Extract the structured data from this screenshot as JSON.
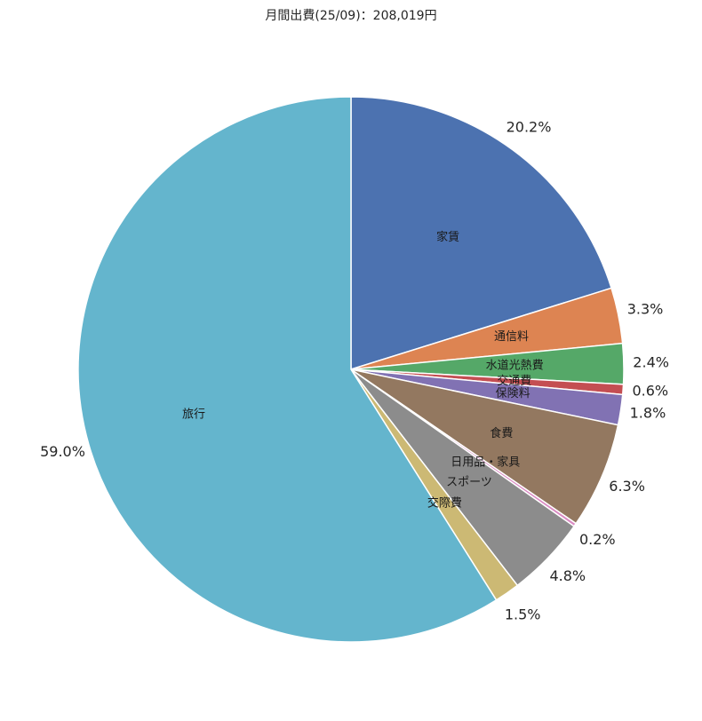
{
  "chart_data": {
    "type": "pie",
    "title": "月間出費(25/09)：208,019円",
    "start_angle_deg": 90,
    "direction": "clockwise",
    "slices": [
      {
        "label": "家賃",
        "percent": 20.2,
        "percent_label": "20.2%",
        "color": "#4c72b0"
      },
      {
        "label": "通信料",
        "percent": 3.3,
        "percent_label": "3.3%",
        "color": "#dd8452"
      },
      {
        "label": "水道光熱費",
        "percent": 2.4,
        "percent_label": "2.4%",
        "color": "#55a868"
      },
      {
        "label": "交通費",
        "percent": 0.6,
        "percent_label": "0.6%",
        "color": "#c44e52"
      },
      {
        "label": "保険料",
        "percent": 1.8,
        "percent_label": "1.8%",
        "color": "#8172b3"
      },
      {
        "label": "食費",
        "percent": 6.3,
        "percent_label": "6.3%",
        "color": "#937860"
      },
      {
        "label": "日用品・家具",
        "percent": 0.2,
        "percent_label": "0.2%",
        "color": "#da8bc3"
      },
      {
        "label": "スポーツ",
        "percent": 4.8,
        "percent_label": "4.8%",
        "color": "#8c8c8c"
      },
      {
        "label": "交際費",
        "percent": 1.5,
        "percent_label": "1.5%",
        "color": "#ccb974"
      },
      {
        "label": "旅行",
        "percent": 59.0,
        "percent_label": "59.0%",
        "color": "#64b5cd"
      }
    ]
  }
}
